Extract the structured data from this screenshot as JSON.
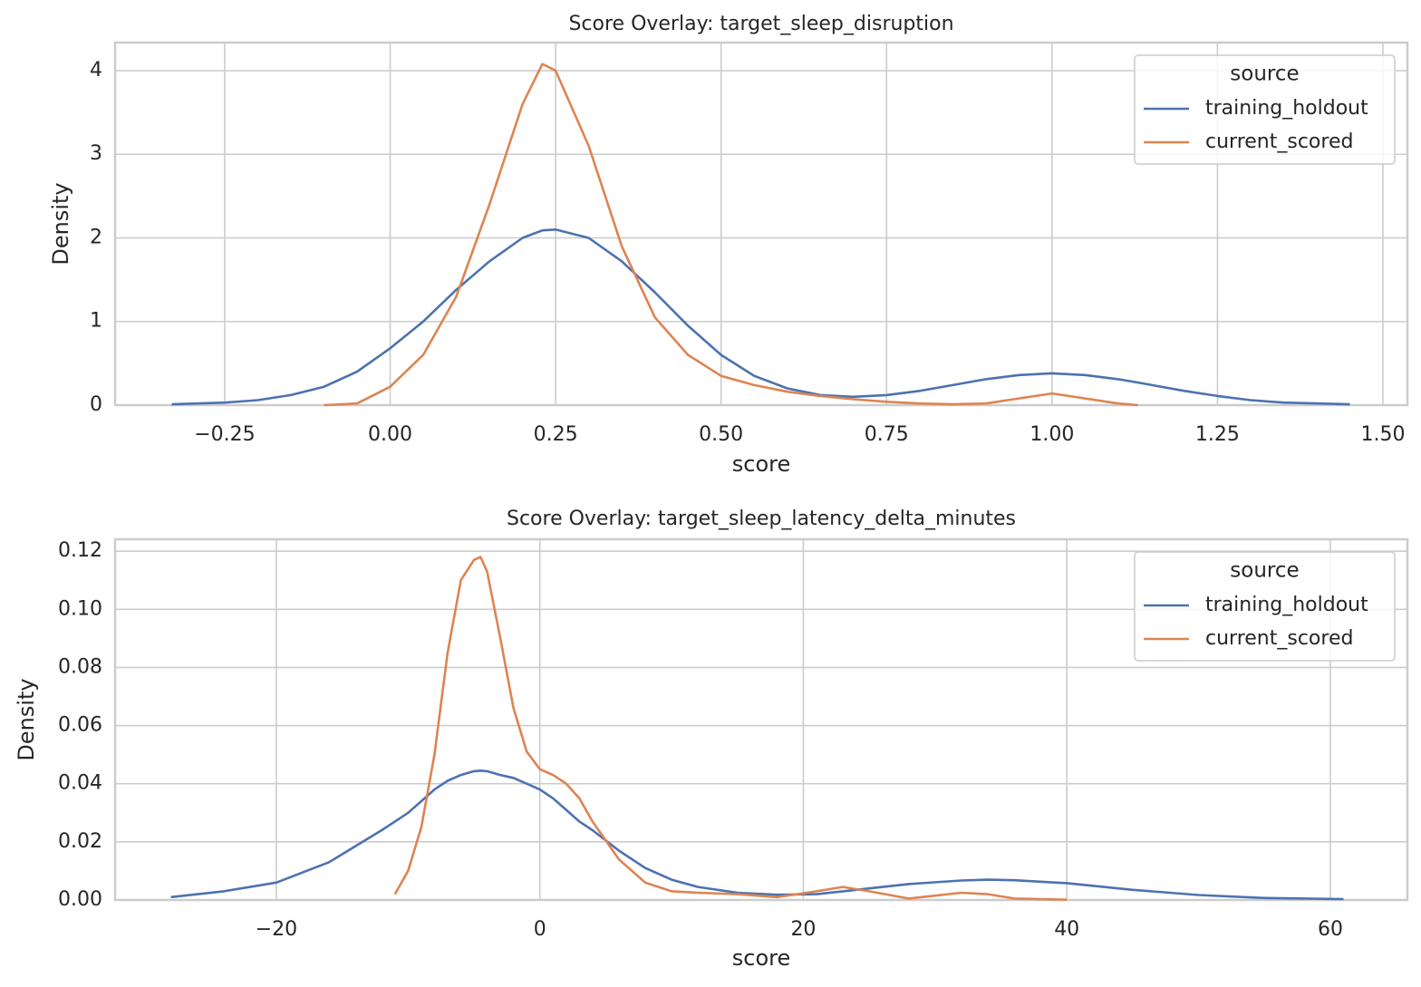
{
  "chart_data": [
    {
      "type": "line",
      "title": "Score Overlay: target_sleep_disruption",
      "xlabel": "score",
      "ylabel": "Density",
      "x": [
        -0.33,
        -0.25,
        -0.2,
        -0.15,
        -0.1,
        -0.05,
        0,
        0.05,
        0.1,
        0.15,
        0.2,
        0.23,
        0.25,
        0.3,
        0.35,
        0.4,
        0.45,
        0.5,
        0.55,
        0.6,
        0.65,
        0.7,
        0.75,
        0.8,
        0.85,
        0.9,
        0.95,
        1.0,
        1.05,
        1.1,
        1.13,
        1.2,
        1.25,
        1.3,
        1.35,
        1.45
      ],
      "series": [
        {
          "name": "training_holdout",
          "color": "#4c72b0",
          "values": [
            0.01,
            0.03,
            0.06,
            0.12,
            0.22,
            0.4,
            0.68,
            1.0,
            1.38,
            1.72,
            2.0,
            2.09,
            2.1,
            2.0,
            1.72,
            1.35,
            0.95,
            0.6,
            0.35,
            0.2,
            0.12,
            0.1,
            0.12,
            0.17,
            0.24,
            0.31,
            0.36,
            0.38,
            0.36,
            0.31,
            0.27,
            0.17,
            0.11,
            0.06,
            0.03,
            0.01
          ]
        },
        {
          "name": "current_scored",
          "color": "#dd8452",
          "values": [
            null,
            null,
            null,
            null,
            0.0,
            0.02,
            0.22,
            0.6,
            1.3,
            2.4,
            3.6,
            4.08,
            4.0,
            3.1,
            1.9,
            1.05,
            0.6,
            0.35,
            0.24,
            0.16,
            0.11,
            0.07,
            0.04,
            0.02,
            0.01,
            0.02,
            0.08,
            0.14,
            0.08,
            0.02,
            0.0,
            null,
            null,
            null,
            null,
            null
          ]
        }
      ],
      "xlim": [
        -0.4156,
        1.537
      ],
      "ylim": [
        0,
        4.336
      ],
      "xticks": [
        {
          "value": -0.25,
          "label": "−0.25"
        },
        {
          "value": 0,
          "label": "0.00"
        },
        {
          "value": 0.25,
          "label": "0.25"
        },
        {
          "value": 0.5,
          "label": "0.50"
        },
        {
          "value": 0.75,
          "label": "0.75"
        },
        {
          "value": 1.0,
          "label": "1.00"
        },
        {
          "value": 1.25,
          "label": "1.25"
        },
        {
          "value": 1.5,
          "label": "1.50"
        }
      ],
      "yticks": [
        0,
        1,
        2,
        3,
        4
      ],
      "grid": true,
      "legend_title": "source",
      "legend_loc": "upper right"
    },
    {
      "type": "line",
      "title": "Score Overlay: target_sleep_latency_delta_minutes",
      "xlabel": "score",
      "ylabel": "Density",
      "x": [
        -28,
        -24,
        -20,
        -16,
        -12,
        -11,
        -10,
        -9,
        -8,
        -7,
        -6,
        -5,
        -4.5,
        -4,
        -3,
        -2,
        -1,
        0,
        1,
        2,
        3,
        4,
        6,
        8,
        10,
        12,
        15,
        18,
        21,
        23,
        25,
        28,
        32,
        34,
        36,
        40,
        45,
        50,
        55,
        61
      ],
      "series": [
        {
          "name": "training_holdout",
          "color": "#4c72b0",
          "values": [
            0.001,
            0.003,
            0.006,
            0.013,
            0.024,
            0.027,
            0.03,
            0.034,
            0.038,
            0.041,
            0.043,
            0.0443,
            0.0445,
            0.0443,
            0.043,
            0.042,
            0.04,
            0.038,
            0.035,
            0.031,
            0.027,
            0.024,
            0.017,
            0.011,
            0.007,
            0.0045,
            0.0025,
            0.0018,
            0.002,
            0.003,
            0.004,
            0.0055,
            0.0067,
            0.007,
            0.0068,
            0.0058,
            0.0035,
            0.0017,
            0.0007,
            0.0003
          ]
        },
        {
          "name": "current_scored",
          "color": "#dd8452",
          "values": [
            null,
            null,
            null,
            null,
            null,
            0.002,
            0.01,
            0.025,
            0.05,
            0.085,
            0.11,
            0.117,
            0.118,
            0.113,
            0.09,
            0.066,
            0.051,
            0.045,
            0.043,
            0.04,
            0.035,
            0.027,
            0.014,
            0.006,
            0.003,
            0.0025,
            0.002,
            0.001,
            0.003,
            0.0045,
            0.003,
            0.0005,
            0.0025,
            0.002,
            0.0005,
            0.0001,
            null,
            null,
            null,
            null
          ]
        }
      ],
      "xlim": [
        -32.24,
        65.85
      ],
      "ylim": [
        0,
        0.1241
      ],
      "xticks": [
        {
          "value": -20,
          "label": "−20"
        },
        0,
        20,
        40,
        60
      ],
      "yticks": [
        {
          "value": 0,
          "label": "0.00"
        },
        {
          "value": 0.02,
          "label": "0.02"
        },
        {
          "value": 0.04,
          "label": "0.04"
        },
        {
          "value": 0.06,
          "label": "0.06"
        },
        {
          "value": 0.08,
          "label": "0.08"
        },
        {
          "value": 0.1,
          "label": "0.10"
        },
        {
          "value": 0.12,
          "label": "0.12"
        }
      ],
      "grid": true,
      "legend_title": "source",
      "legend_loc": "upper right"
    }
  ]
}
